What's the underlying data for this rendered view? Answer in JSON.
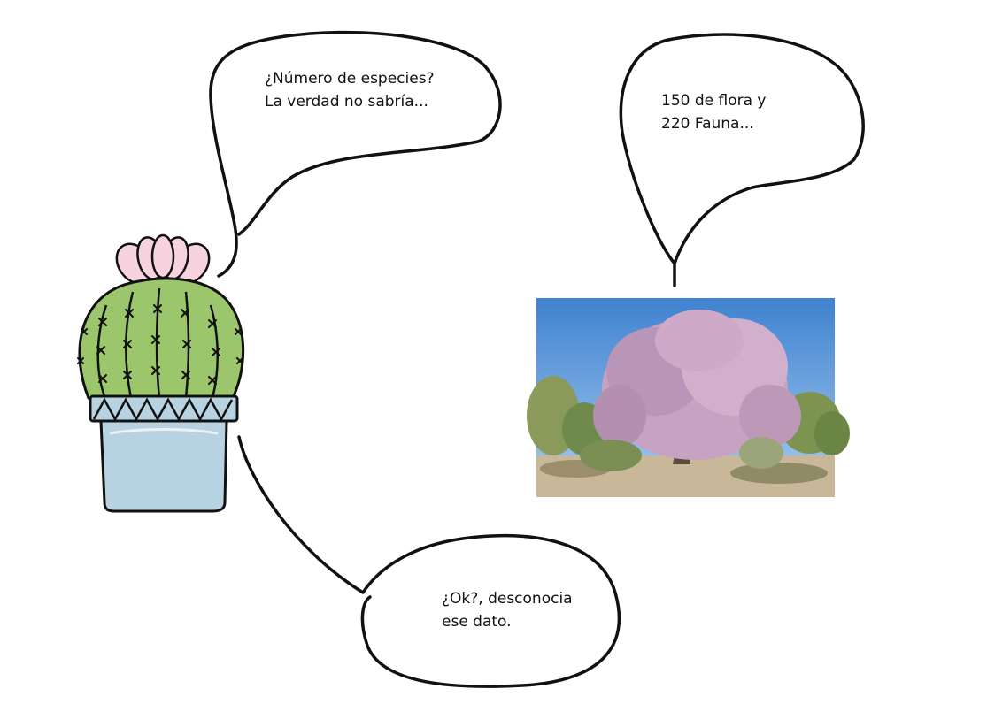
{
  "bubbles": {
    "left_top": {
      "line1": "¿Número de especies?",
      "line2": "La verdad no sabría..."
    },
    "right_top": {
      "line1": "150 de flora y",
      "line2": "220 Fauna..."
    },
    "bottom": {
      "line1": "¿Ok?, desconocia",
      "line2": "ese dato."
    }
  },
  "colors": {
    "ink": "#111111",
    "cactus_green": "#9bc66c",
    "flower_pink": "#f6d3df",
    "pot_blue": "#b7d3e1",
    "sky_blue": "#4f8fd4",
    "blossom_purple": "#c8a2c2",
    "ground_tan": "#c9b79a"
  },
  "icons": {
    "cactus": "cactus-illustration",
    "photo": "desert-tree-photo"
  }
}
